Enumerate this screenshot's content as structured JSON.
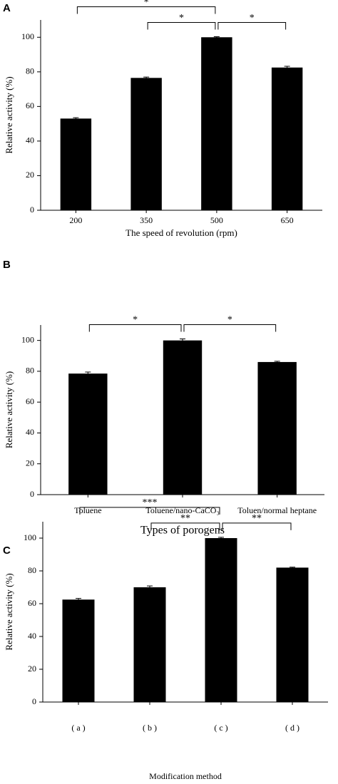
{
  "chart_data": [
    {
      "type": "bar",
      "panel": "A",
      "xlabel": "The speed of revolution (rpm)",
      "ylabel": "Relative activity (%)",
      "categories": [
        "200",
        "350",
        "500",
        "650"
      ],
      "values": [
        53,
        76.5,
        100,
        82.5
      ],
      "errors": [
        0.5,
        0.5,
        0.3,
        0.7
      ],
      "color": "#000000",
      "ylim": [
        0,
        110
      ],
      "yticks": [
        0,
        20,
        40,
        60,
        80,
        100
      ],
      "annotations": [
        {
          "text": "*",
          "between": [
            "200",
            "500"
          ]
        },
        {
          "text": "*",
          "between": [
            "350",
            "500"
          ]
        },
        {
          "text": "*",
          "between": [
            "500",
            "650"
          ]
        }
      ]
    },
    {
      "type": "bar",
      "panel": "B",
      "xlabel": "Types of porogens",
      "ylabel": "Relative activity (%)",
      "categories": [
        "Toluene",
        "Toluene/nano-CaCO₃",
        "Toluen/normal heptane"
      ],
      "values": [
        78.5,
        100,
        86
      ],
      "errors": [
        1,
        1,
        0.5
      ],
      "color": "#000000",
      "ylim": [
        0,
        110
      ],
      "yticks": [
        0,
        20,
        40,
        60,
        80,
        100
      ],
      "annotations": [
        {
          "text": "*",
          "between": [
            "Toluene",
            "Toluene/nano-CaCO₃"
          ]
        },
        {
          "text": "*",
          "between": [
            "Toluene/nano-CaCO₃",
            "Toluen/normal heptane"
          ]
        }
      ]
    },
    {
      "type": "bar",
      "panel": "C",
      "xlabel": "Modification method",
      "ylabel": "Relative activity (%)",
      "categories": [
        "( a )",
        "( b )",
        "( c )",
        "( d )"
      ],
      "values": [
        62.5,
        70,
        100,
        82
      ],
      "errors": [
        0.7,
        0.8,
        0.5,
        0.3
      ],
      "color": "#000000",
      "ylim": [
        0,
        110
      ],
      "yticks": [
        0,
        20,
        40,
        60,
        80,
        100
      ],
      "annotations": [
        {
          "text": "***",
          "between": [
            "( a )",
            "( c )"
          ]
        },
        {
          "text": "**",
          "between": [
            "( b )",
            "( c )"
          ]
        },
        {
          "text": "**",
          "between": [
            "( c )",
            "( d )"
          ]
        }
      ]
    }
  ]
}
